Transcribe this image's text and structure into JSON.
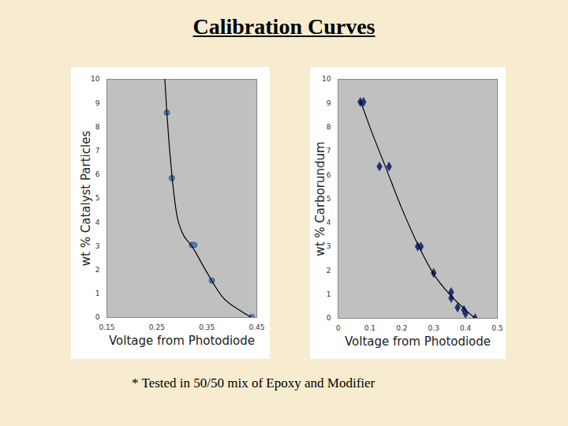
{
  "title": "Calibration Curves",
  "caption": "* Tested in 50/50 mix of Epoxy and Modifier",
  "chart_data": [
    {
      "type": "scatter",
      "xlabel": "Voltage from Photodiode",
      "ylabel": "wt % Catalyst Particles",
      "xlim": [
        0.15,
        0.45
      ],
      "xticks": [
        0.15,
        0.25,
        0.35,
        0.45
      ],
      "ylim": [
        0,
        10
      ],
      "yticks": [
        0,
        1,
        2,
        3,
        4,
        5,
        6,
        7,
        8,
        9,
        10
      ],
      "grid": false,
      "series": [
        {
          "type": "scatter",
          "color": "#4f81bd",
          "marker": "circle",
          "x": [
            0.27,
            0.28,
            0.32,
            0.325,
            0.36,
            0.44
          ],
          "values": [
            8.6,
            5.85,
            3.05,
            3.05,
            1.55,
            0.02
          ]
        },
        {
          "type": "line",
          "color": "#000000",
          "line_style": "solid",
          "x": [
            0.266,
            0.27,
            0.28,
            0.29,
            0.3,
            0.32,
            0.35,
            0.38,
            0.42,
            0.44
          ],
          "values": [
            10,
            8.6,
            6.0,
            4.3,
            3.6,
            3.0,
            1.9,
            0.9,
            0.25,
            0.0
          ]
        }
      ]
    },
    {
      "type": "scatter",
      "xlabel": "Voltage from Photodiode",
      "ylabel": "wt % Carborundum",
      "xlim": [
        0,
        0.5
      ],
      "xticks": [
        0,
        0.1,
        0.2,
        0.3,
        0.4,
        0.5
      ],
      "ylim": [
        0,
        10
      ],
      "yticks": [
        0,
        1,
        2,
        3,
        4,
        5,
        6,
        7,
        8,
        9,
        10
      ],
      "grid": false,
      "series": [
        {
          "type": "scatter",
          "color": "#1f2f7f",
          "marker": "diamond",
          "x": [
            0.07,
            0.08,
            0.13,
            0.16,
            0.25,
            0.26,
            0.3,
            0.355,
            0.355,
            0.375,
            0.395,
            0.4,
            0.43
          ],
          "values": [
            9.05,
            9.05,
            6.35,
            6.35,
            3.0,
            3.0,
            1.9,
            1.1,
            0.85,
            0.45,
            0.35,
            0.2,
            0.0
          ]
        },
        {
          "type": "line",
          "color": "#000000",
          "line_style": "solid",
          "x": [
            0.07,
            0.1,
            0.15,
            0.2,
            0.25,
            0.3,
            0.35,
            0.4,
            0.43
          ],
          "values": [
            9.1,
            8.0,
            6.3,
            4.6,
            3.1,
            1.85,
            1.0,
            0.35,
            0.0
          ]
        }
      ]
    }
  ]
}
